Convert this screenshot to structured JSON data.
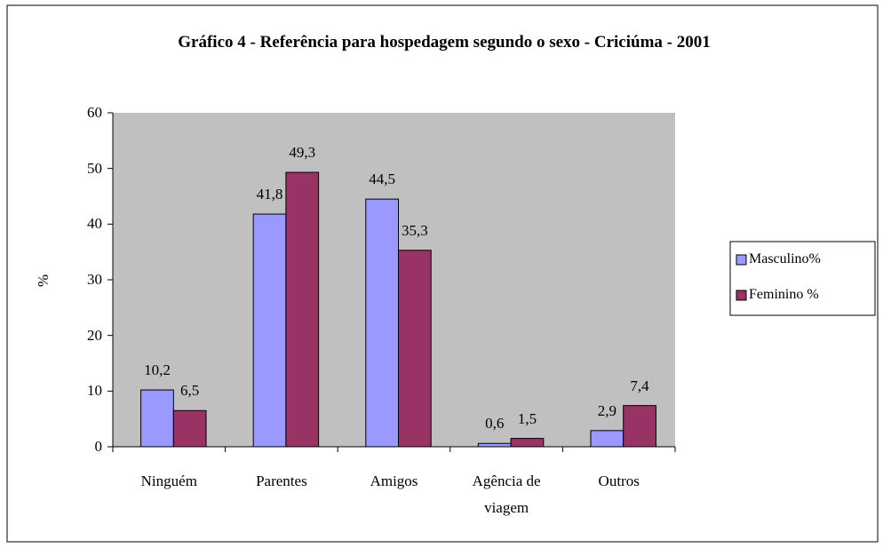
{
  "chart_data": {
    "type": "bar",
    "title": "Gráfico 4 - Referência para hospedagem segundo o sexo - Criciúma - 2001",
    "y_label": "%",
    "categories": [
      "Ninguém",
      "Parentes",
      "Amigos",
      "Agência de viagem",
      "Outros"
    ],
    "series": [
      {
        "name": "Masculino%",
        "color": "#9999ff",
        "values": [
          10.2,
          41.8,
          44.5,
          0.6,
          2.9
        ],
        "value_labels": [
          "10,2",
          "41,8",
          "44,5",
          "0,6",
          "2,9"
        ]
      },
      {
        "name": "Feminino %",
        "color": "#993366",
        "values": [
          6.5,
          49.3,
          35.3,
          1.5,
          7.4
        ],
        "value_labels": [
          "6,5",
          "49,3",
          "35,3",
          "1,5",
          "7,4"
        ]
      }
    ],
    "ylim": [
      0,
      60
    ],
    "yticks": [
      0,
      10,
      20,
      30,
      40,
      50,
      60
    ],
    "plot_background": "#c0c0c0",
    "legend": "right"
  }
}
